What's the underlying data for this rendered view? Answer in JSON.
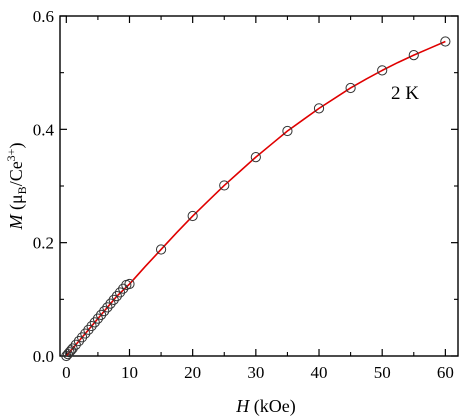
{
  "chart_data": {
    "type": "scatter",
    "xlim": [
      -1,
      62
    ],
    "ylim": [
      0,
      0.6
    ],
    "x_ticks": [
      0,
      10,
      20,
      30,
      40,
      50,
      60
    ],
    "x_tick_labels": [
      "0",
      "10",
      "20",
      "30",
      "40",
      "50",
      "60"
    ],
    "y_ticks": [
      0,
      0.2,
      0.4,
      0.6
    ],
    "y_tick_labels": [
      "0.0",
      "0.2",
      "0.4",
      "0.6"
    ],
    "xlabel": {
      "var": "H",
      "rest": " (kOe)"
    },
    "ylabel": {
      "var": "M",
      "open": " (",
      "mu": "μ",
      "mu_sub": "B",
      "mid": "/Ce",
      "sup": "3+",
      "close": ")"
    },
    "annotation": "2 K",
    "grid": false,
    "series": [
      {
        "kind": "markers",
        "marker": "open-circle",
        "color": "#333333",
        "x": [
          0,
          0.25,
          0.5,
          0.75,
          1,
          1.5,
          2,
          2.5,
          3,
          3.5,
          4,
          4.5,
          5,
          5.5,
          6,
          6.5,
          7,
          7.5,
          8,
          8.5,
          9,
          9.5,
          10,
          15,
          20,
          25,
          30,
          35,
          40,
          45,
          50,
          55,
          60
        ],
        "y": [
          0,
          0.0033,
          0.0066,
          0.0099,
          0.0132,
          0.0198,
          0.0264,
          0.033,
          0.0396,
          0.0462,
          0.0528,
          0.0594,
          0.066,
          0.0726,
          0.0792,
          0.0858,
          0.0924,
          0.099,
          0.1056,
          0.1122,
          0.1188,
          0.1254,
          0.127,
          0.188,
          0.247,
          0.301,
          0.351,
          0.397,
          0.437,
          0.473,
          0.504,
          0.531,
          0.555
        ]
      },
      {
        "kind": "line",
        "color": "#e00000",
        "x": [
          0,
          2,
          4,
          6,
          8,
          10,
          12.5,
          15,
          17.5,
          20,
          22.5,
          25,
          27.5,
          30,
          32.5,
          35,
          37.5,
          40,
          42.5,
          45,
          47.5,
          50,
          52.5,
          55,
          57.5,
          60
        ],
        "y": [
          0,
          0.0264,
          0.0528,
          0.0792,
          0.1056,
          0.127,
          0.158,
          0.188,
          0.218,
          0.247,
          0.274,
          0.301,
          0.326,
          0.351,
          0.374,
          0.397,
          0.417,
          0.437,
          0.455,
          0.473,
          0.489,
          0.504,
          0.518,
          0.531,
          0.543,
          0.555
        ]
      }
    ]
  }
}
